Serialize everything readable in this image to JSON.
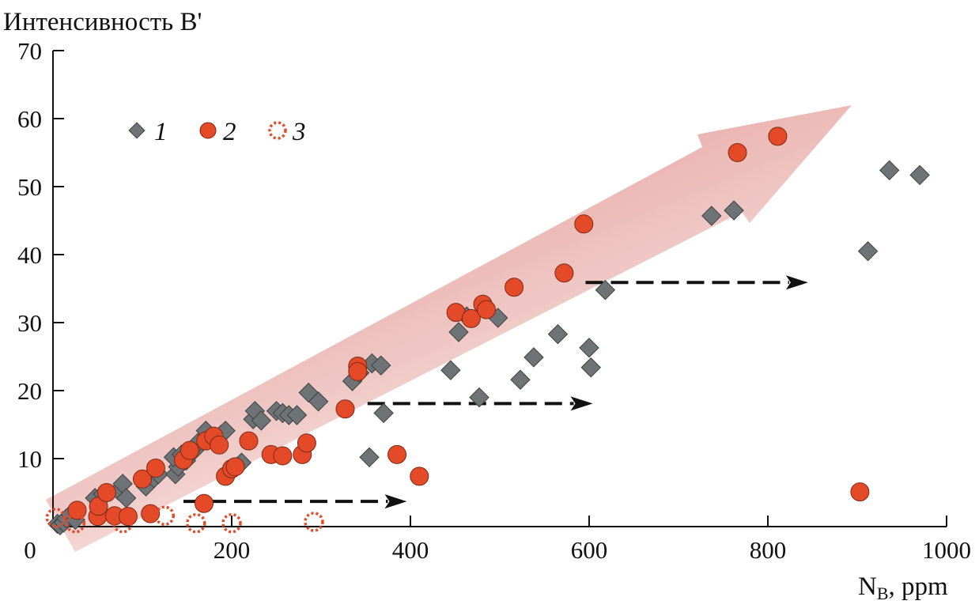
{
  "chart_data": {
    "type": "scatter",
    "title": "Интенсивность B'",
    "xlabel_main": "N",
    "xlabel_sub": "B",
    "xlabel_rest": ", ppm",
    "xlim": [
      0,
      1000
    ],
    "ylim": [
      0,
      70
    ],
    "xticks": [
      0,
      200,
      400,
      600,
      800,
      1000
    ],
    "yticks": [
      10,
      20,
      30,
      40,
      50,
      60,
      70
    ],
    "x_tick_labels": [
      "0",
      "200",
      "400",
      "600",
      "800",
      "1000"
    ],
    "y_tick_labels": [
      "10",
      "20",
      "30",
      "40",
      "50",
      "60",
      "70"
    ],
    "grid": false,
    "legend_placement": "top-left",
    "colors": {
      "series1": "#6e7376",
      "series2": "#e44a27",
      "series3": "#e44a27",
      "trend_arrow": "#e7a3a0",
      "dashed_arrows": "#111111"
    },
    "series": [
      {
        "name": "1",
        "marker": "diamond",
        "points": [
          [
            5,
            0.4
          ],
          [
            8,
            0.2
          ],
          [
            12,
            0.6
          ],
          [
            15,
            1.2
          ],
          [
            20,
            1.8
          ],
          [
            25,
            1.0
          ],
          [
            47,
            4.2
          ],
          [
            56,
            4.8
          ],
          [
            73,
            5.3
          ],
          [
            78,
            6.3
          ],
          [
            82,
            4.2
          ],
          [
            104,
            5.9
          ],
          [
            113,
            7.1
          ],
          [
            118,
            7.7
          ],
          [
            137,
            7.7
          ],
          [
            140,
            8.8
          ],
          [
            135,
            10.2
          ],
          [
            144,
            10.6
          ],
          [
            149,
            9.7
          ],
          [
            158,
            11.2
          ],
          [
            162,
            12.3
          ],
          [
            171,
            14.1
          ],
          [
            188,
            13.5
          ],
          [
            193,
            14.1
          ],
          [
            206,
            8.8
          ],
          [
            211,
            9.4
          ],
          [
            224,
            15.8
          ],
          [
            226,
            17
          ],
          [
            233,
            15.6
          ],
          [
            250,
            17
          ],
          [
            257,
            16.7
          ],
          [
            264,
            16.4
          ],
          [
            273,
            16.4
          ],
          [
            286,
            19.7
          ],
          [
            297,
            18.4
          ],
          [
            335,
            21.4
          ],
          [
            343,
            22.6
          ],
          [
            357,
            24
          ],
          [
            367,
            23.7
          ],
          [
            354,
            10.2
          ],
          [
            370,
            16.7
          ],
          [
            445,
            23
          ],
          [
            454,
            28.6
          ],
          [
            463,
            30.9
          ],
          [
            477,
            19
          ],
          [
            498,
            30.7
          ],
          [
            523,
            21.6
          ],
          [
            538,
            24.9
          ],
          [
            565,
            28.3
          ],
          [
            600,
            26.3
          ],
          [
            602,
            23.4
          ],
          [
            618,
            34.8
          ],
          [
            737,
            45.7
          ],
          [
            762,
            46.5
          ],
          [
            912,
            40.5
          ],
          [
            936,
            52.4
          ],
          [
            970,
            51.7
          ]
        ]
      },
      {
        "name": "2",
        "marker": "circle",
        "points": [
          [
            27,
            2.4
          ],
          [
            50,
            1.5
          ],
          [
            51,
            3
          ],
          [
            60,
            5
          ],
          [
            69,
            1.6
          ],
          [
            84,
            1.5
          ],
          [
            109,
            1.9
          ],
          [
            100,
            7
          ],
          [
            115,
            8.6
          ],
          [
            146,
            9.8
          ],
          [
            153,
            11.2
          ],
          [
            171,
            12.6
          ],
          [
            180,
            13.3
          ],
          [
            186,
            12
          ],
          [
            193,
            7.4
          ],
          [
            200,
            8.5
          ],
          [
            204,
            8.8
          ],
          [
            219,
            12.6
          ],
          [
            169,
            3.4
          ],
          [
            244,
            10.6
          ],
          [
            257,
            10.4
          ],
          [
            279,
            10.6
          ],
          [
            284,
            12.3
          ],
          [
            327,
            17.3
          ],
          [
            341,
            23.6
          ],
          [
            341,
            22.8
          ],
          [
            451,
            31.5
          ],
          [
            468,
            30.6
          ],
          [
            481,
            32.7
          ],
          [
            485,
            31.9
          ],
          [
            516,
            35.2
          ],
          [
            385,
            10.6
          ],
          [
            410,
            7.4
          ],
          [
            572,
            37.3
          ],
          [
            594,
            44.5
          ],
          [
            766,
            55
          ],
          [
            811,
            57.4
          ],
          [
            903,
            5.1
          ]
        ]
      },
      {
        "name": "3",
        "marker": "dotted-circle",
        "points": [
          [
            3,
            1.3
          ],
          [
            25,
            0.5
          ],
          [
            78,
            0.5
          ],
          [
            125,
            1.6
          ],
          [
            160,
            0.5
          ],
          [
            200,
            0.5
          ],
          [
            292,
            0.7
          ]
        ]
      }
    ],
    "annotations": {
      "dashed_arrows": [
        {
          "from": [
            146,
            3.7
          ],
          "to": [
            396,
            3.7
          ]
        },
        {
          "from": [
            352,
            18.1
          ],
          "to": [
            604,
            18.1
          ]
        },
        {
          "from": [
            596,
            35.9
          ],
          "to": [
            845,
            35.9
          ]
        }
      ],
      "trend_arrow": "gradient arrow pointing up-right"
    }
  }
}
